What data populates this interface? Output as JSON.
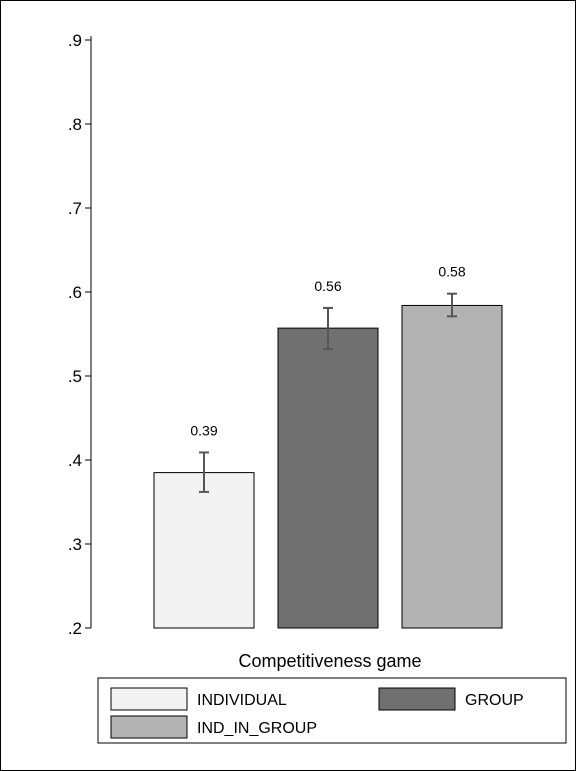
{
  "chart_data": {
    "type": "bar",
    "categories": [
      "INDIVIDUAL",
      "GROUP",
      "IND_IN_GROUP"
    ],
    "values": [
      0.385,
      0.557,
      0.584
    ],
    "data_labels": [
      "0.39",
      "0.56",
      "0.58"
    ],
    "errors": [
      {
        "low": 0.362,
        "high": 0.409
      },
      {
        "low": 0.532,
        "high": 0.581
      },
      {
        "low": 0.571,
        "high": 0.598
      }
    ],
    "colors": [
      "#f2f2f2",
      "#707070",
      "#b3b3b3"
    ],
    "ylim": [
      0.2,
      0.9
    ],
    "yticks": [
      ".2",
      ".3",
      ".4",
      ".5",
      ".6",
      ".7",
      ".8",
      ".9"
    ],
    "ytick_values": [
      0.2,
      0.3,
      0.4,
      0.5,
      0.6,
      0.7,
      0.8,
      0.9
    ],
    "xlabel": "Competitiveness game",
    "grid": false,
    "legend": {
      "placement": "bottom",
      "entries": [
        {
          "label": "INDIVIDUAL",
          "color": "#f2f2f2"
        },
        {
          "label": "GROUP",
          "color": "#707070"
        },
        {
          "label": "IND_IN_GROUP",
          "color": "#b3b3b3"
        }
      ]
    }
  }
}
